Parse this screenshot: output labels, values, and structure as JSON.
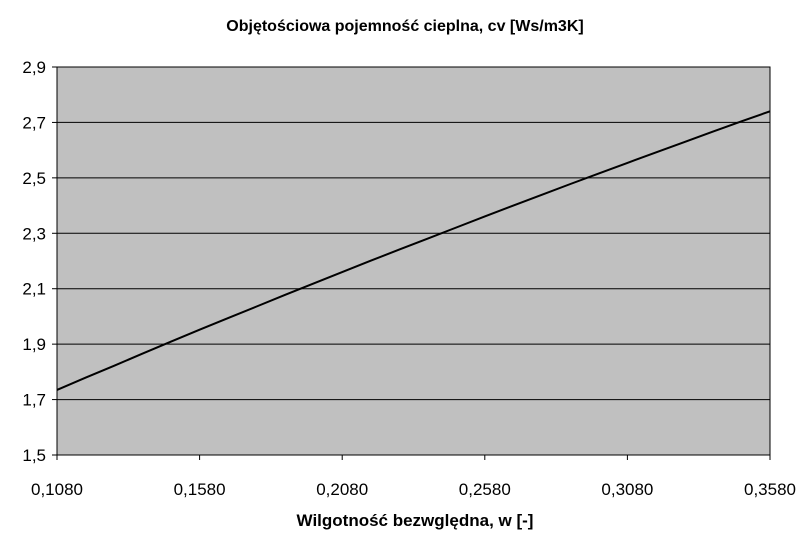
{
  "chart_data": {
    "type": "line",
    "title": "Objętościowa pojemność cieplna, cv [Ws/m3K]",
    "xlabel": "Wilgotność bezwględna, w [-]",
    "ylabel": "",
    "xlim": [
      0.108,
      0.358
    ],
    "ylim": [
      1.5,
      2.9
    ],
    "x_ticks": [
      0.108,
      0.158,
      0.208,
      0.258,
      0.308,
      0.358
    ],
    "x_tick_labels": [
      "0,1080",
      "0,1580",
      "0,2080",
      "0,2580",
      "0,3080",
      "0,3580"
    ],
    "y_ticks": [
      1.5,
      1.7,
      1.9,
      2.1,
      2.3,
      2.5,
      2.7,
      2.9
    ],
    "y_tick_labels": [
      "1,5",
      "1,7",
      "1,9",
      "2,1",
      "2,3",
      "2,5",
      "2,7",
      "2,9"
    ],
    "grid": true,
    "legend": "none",
    "colors": {
      "plot_background": "#c0c0c0",
      "gridline": "#000000",
      "line": "#000000",
      "page_background": "#ffffff"
    },
    "series": [
      {
        "x": [
          0.108,
          0.118,
          0.128,
          0.138,
          0.148,
          0.158,
          0.168,
          0.178,
          0.188,
          0.198,
          0.208,
          0.218,
          0.228,
          0.238,
          0.248,
          0.258,
          0.268,
          0.278,
          0.288,
          0.298,
          0.308,
          0.318,
          0.328,
          0.338,
          0.348,
          0.358
        ],
        "y": [
          1.735,
          1.779,
          1.822,
          1.866,
          1.909,
          1.952,
          1.994,
          2.036,
          2.078,
          2.119,
          2.16,
          2.201,
          2.241,
          2.281,
          2.321,
          2.361,
          2.4,
          2.439,
          2.478,
          2.516,
          2.554,
          2.592,
          2.629,
          2.667,
          2.704,
          2.74
        ]
      }
    ]
  }
}
